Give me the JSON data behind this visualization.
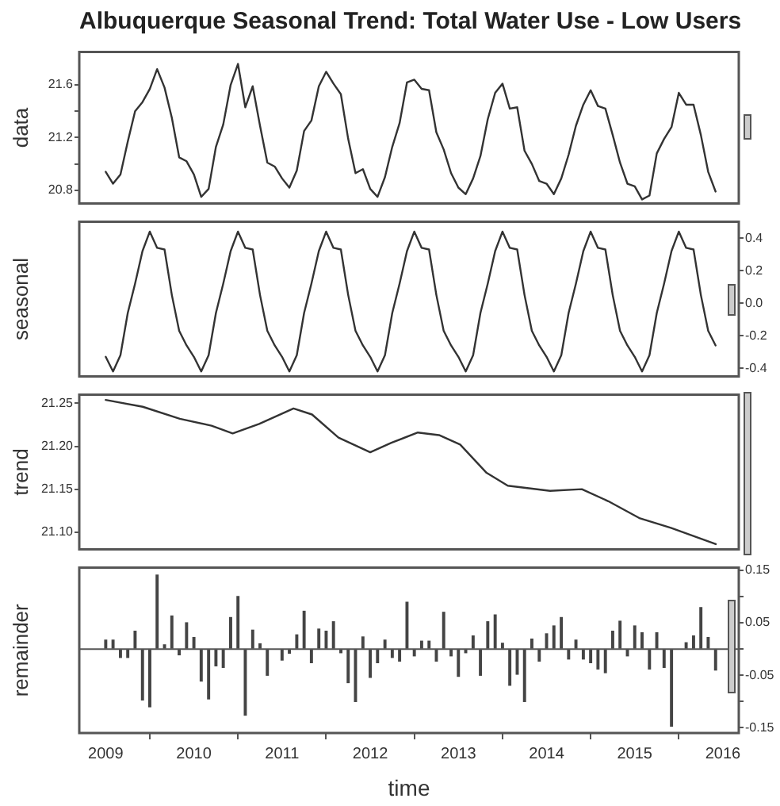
{
  "chart_data": [
    {
      "type": "line",
      "title": "Albuquerque Seasonal Trend: Total Water Use - Low Users",
      "ylabel": "data",
      "color": "#333333",
      "x": [
        2009,
        2009.083,
        2009.167,
        2009.25,
        2009.333,
        2009.417,
        2009.5,
        2009.583,
        2009.667,
        2009.75,
        2009.833,
        2009.917,
        2010,
        2010.083,
        2010.167,
        2010.25,
        2010.333,
        2010.417,
        2010.5,
        2010.583,
        2010.667,
        2010.75,
        2010.833,
        2010.917,
        2011,
        2011.083,
        2011.167,
        2011.25,
        2011.333,
        2011.417,
        2011.5,
        2011.583,
        2011.667,
        2011.75,
        2011.833,
        2011.917,
        2012,
        2012.083,
        2012.167,
        2012.25,
        2012.333,
        2012.417,
        2012.5,
        2012.583,
        2012.667,
        2012.75,
        2012.833,
        2012.917,
        2013,
        2013.083,
        2013.167,
        2013.25,
        2013.333,
        2013.417,
        2013.5,
        2013.583,
        2013.667,
        2013.75,
        2013.833,
        2013.917,
        2014,
        2014.083,
        2014.167,
        2014.25,
        2014.333,
        2014.417,
        2014.5,
        2014.583,
        2014.667,
        2014.75,
        2014.833,
        2014.917,
        2015,
        2015.083,
        2015.167,
        2015.25,
        2015.333,
        2015.417,
        2015.5,
        2015.583,
        2015.667,
        2015.75,
        2015.833,
        2015.917
      ],
      "values": [
        20.94,
        20.85,
        20.92,
        21.17,
        21.4,
        21.47,
        21.57,
        21.72,
        21.58,
        21.35,
        21.05,
        21.02,
        20.92,
        20.75,
        20.81,
        21.13,
        21.3,
        21.6,
        21.76,
        21.43,
        21.59,
        21.29,
        21.01,
        20.98,
        20.89,
        20.82,
        20.95,
        21.25,
        21.33,
        21.59,
        21.7,
        21.61,
        21.53,
        21.19,
        20.93,
        20.96,
        20.81,
        20.75,
        20.9,
        21.13,
        21.31,
        21.62,
        21.64,
        21.57,
        21.56,
        21.24,
        21.11,
        20.93,
        20.82,
        20.77,
        20.89,
        21.06,
        21.34,
        21.54,
        21.61,
        21.42,
        21.43,
        21.1,
        21.0,
        20.87,
        20.85,
        20.77,
        20.89,
        21.07,
        21.29,
        21.45,
        21.56,
        21.44,
        21.42,
        21.22,
        21.01,
        20.85,
        20.83,
        20.73,
        20.76,
        21.08,
        21.19,
        21.28,
        21.54,
        21.45,
        21.45,
        21.22,
        20.94,
        20.79
      ],
      "xlim": [
        2008.7,
        2016.18
      ],
      "xticks": [
        2009,
        2010,
        2011,
        2012,
        2013,
        2014,
        2015,
        2016
      ],
      "ylim": [
        20.7,
        21.85
      ],
      "yticks": [
        20.8,
        {
          "value": 21.0,
          "label": null
        },
        21.2,
        {
          "value": 21.4,
          "label": null
        },
        21.6
      ],
      "tick_labels": "y"
    },
    {
      "type": "line",
      "ylabel": "seasonal",
      "color": "#333333",
      "x": [
        2009,
        2009.083,
        2009.167,
        2009.25,
        2009.333,
        2009.417,
        2009.5,
        2009.583,
        2009.667,
        2009.75,
        2009.833,
        2009.917,
        2010,
        2010.083,
        2010.167,
        2010.25,
        2010.333,
        2010.417,
        2010.5,
        2010.583,
        2010.667,
        2010.75,
        2010.833,
        2010.917,
        2011,
        2011.083,
        2011.167,
        2011.25,
        2011.333,
        2011.417,
        2011.5,
        2011.583,
        2011.667,
        2011.75,
        2011.833,
        2011.917,
        2012,
        2012.083,
        2012.167,
        2012.25,
        2012.333,
        2012.417,
        2012.5,
        2012.583,
        2012.667,
        2012.75,
        2012.833,
        2012.917,
        2013,
        2013.083,
        2013.167,
        2013.25,
        2013.333,
        2013.417,
        2013.5,
        2013.583,
        2013.667,
        2013.75,
        2013.833,
        2013.917,
        2014,
        2014.083,
        2014.167,
        2014.25,
        2014.333,
        2014.417,
        2014.5,
        2014.583,
        2014.667,
        2014.75,
        2014.833,
        2014.917,
        2015,
        2015.083,
        2015.167,
        2015.25,
        2015.333,
        2015.417,
        2015.5,
        2015.583,
        2015.667,
        2015.75,
        2015.833,
        2015.917
      ],
      "values": [
        -0.33,
        -0.42,
        -0.32,
        -0.06,
        0.12,
        0.32,
        0.44,
        0.34,
        0.33,
        0.05,
        -0.17,
        -0.26,
        -0.33,
        -0.42,
        -0.32,
        -0.06,
        0.12,
        0.32,
        0.44,
        0.34,
        0.33,
        0.05,
        -0.17,
        -0.26,
        -0.33,
        -0.42,
        -0.32,
        -0.06,
        0.12,
        0.32,
        0.44,
        0.34,
        0.33,
        0.05,
        -0.17,
        -0.26,
        -0.33,
        -0.42,
        -0.32,
        -0.06,
        0.12,
        0.32,
        0.44,
        0.34,
        0.33,
        0.05,
        -0.17,
        -0.26,
        -0.33,
        -0.42,
        -0.32,
        -0.06,
        0.12,
        0.32,
        0.44,
        0.34,
        0.33,
        0.05,
        -0.17,
        -0.26,
        -0.33,
        -0.42,
        -0.32,
        -0.06,
        0.12,
        0.32,
        0.44,
        0.34,
        0.33,
        0.05,
        -0.17,
        -0.26,
        -0.33,
        -0.42,
        -0.32,
        -0.06,
        0.12,
        0.32,
        0.44,
        0.34,
        0.33,
        0.05,
        -0.17,
        -0.26
      ],
      "xlim": [
        2008.7,
        2016.18
      ],
      "xticks": [
        2009,
        2010,
        2011,
        2012,
        2013,
        2014,
        2015,
        2016
      ],
      "ylim": [
        -0.45,
        0.5
      ],
      "yticks": [
        -0.4,
        -0.2,
        {
          "value": 0,
          "label": "0.0"
        },
        0.2,
        0.4
      ],
      "tick_labels": "y"
    },
    {
      "type": "line",
      "ylabel": "trend",
      "color": "#333333",
      "x": [
        2009.0,
        2009.42,
        2009.84,
        2010.2,
        2010.44,
        2010.74,
        2011.13,
        2011.34,
        2011.64,
        2012.0,
        2012.24,
        2012.54,
        2012.78,
        2013.02,
        2013.32,
        2013.56,
        2014.04,
        2014.4,
        2014.7,
        2015.06,
        2015.41,
        2015.92
      ],
      "values": [
        21.254,
        21.246,
        21.232,
        21.224,
        21.215,
        21.226,
        21.244,
        21.237,
        21.21,
        21.193,
        21.204,
        21.216,
        21.213,
        21.202,
        21.169,
        21.154,
        21.148,
        21.15,
        21.136,
        21.116,
        21.105,
        21.086
      ],
      "xlim": [
        2008.7,
        2016.18
      ],
      "xticks": [
        2009,
        2010,
        2011,
        2012,
        2013,
        2014,
        2015,
        2016
      ],
      "ylim": [
        21.08,
        21.26
      ],
      "yticks": [
        {
          "value": 21.1,
          "label": "21.10"
        },
        21.15,
        {
          "value": 21.2,
          "label": "21.20"
        },
        21.25
      ],
      "tick_labels": "y"
    },
    {
      "type": "bar",
      "ylabel": "remainder",
      "xlabel": "time",
      "color": "#444444",
      "x": [
        2009,
        2009.083,
        2009.167,
        2009.25,
        2009.333,
        2009.417,
        2009.5,
        2009.583,
        2009.667,
        2009.75,
        2009.833,
        2009.917,
        2010,
        2010.083,
        2010.167,
        2010.25,
        2010.333,
        2010.417,
        2010.5,
        2010.583,
        2010.667,
        2010.75,
        2010.833,
        2010.917,
        2011,
        2011.083,
        2011.167,
        2011.25,
        2011.333,
        2011.417,
        2011.5,
        2011.583,
        2011.667,
        2011.75,
        2011.833,
        2011.917,
        2012,
        2012.083,
        2012.167,
        2012.25,
        2012.333,
        2012.417,
        2012.5,
        2012.583,
        2012.667,
        2012.75,
        2012.833,
        2012.917,
        2013,
        2013.083,
        2013.167,
        2013.25,
        2013.333,
        2013.417,
        2013.5,
        2013.583,
        2013.667,
        2013.75,
        2013.833,
        2013.917,
        2014,
        2014.083,
        2014.167,
        2014.25,
        2014.333,
        2014.417,
        2014.5,
        2014.583,
        2014.667,
        2014.75,
        2014.833,
        2014.917,
        2015,
        2015.083,
        2015.167,
        2015.25,
        2015.333,
        2015.417,
        2015.5,
        2015.583,
        2015.667,
        2015.75,
        2015.833,
        2015.917
      ],
      "values": [
        0.017,
        0.017,
        -0.016,
        -0.016,
        0.034,
        -0.097,
        -0.11,
        0.141,
        0.008,
        0.063,
        -0.011,
        0.05,
        0.022,
        -0.061,
        -0.095,
        -0.032,
        -0.035,
        0.06,
        0.1,
        -0.126,
        0.036,
        0.01,
        -0.05,
        null,
        -0.021,
        -0.008,
        0.027,
        0.072,
        -0.026,
        0.038,
        0.034,
        0.052,
        -0.007,
        -0.064,
        -0.1,
        0.023,
        -0.054,
        -0.026,
        0.017,
        -0.016,
        -0.023,
        0.089,
        -0.013,
        0.015,
        0.015,
        -0.023,
        0.07,
        -0.013,
        -0.052,
        -0.007,
        0.025,
        -0.05,
        0.052,
        0.065,
        0.011,
        -0.069,
        -0.048,
        -0.1,
        0.019,
        -0.023,
        0.029,
        0.044,
        0.06,
        -0.019,
        0.017,
        -0.019,
        -0.026,
        -0.038,
        -0.045,
        0.034,
        0.053,
        -0.013,
        0.044,
        0.031,
        -0.038,
        0.031,
        -0.035,
        -0.147,
        null,
        0.012,
        0.025,
        0.079,
        0.022,
        -0.04
      ],
      "xlim": [
        2008.7,
        2016.18
      ],
      "xticks": [
        2009,
        2010,
        2011,
        2012,
        2013,
        2014,
        2015,
        2016
      ],
      "ylim": [
        -0.16,
        0.155
      ],
      "yticks": [
        -0.15,
        {
          "value": -0.1,
          "label": null
        },
        -0.05,
        {
          "value": 0,
          "label": null
        },
        0.05,
        {
          "value": 0.1,
          "label": null
        },
        0.15
      ],
      "ref_lines": [
        {
          "axis": "y",
          "value": 0
        }
      ]
    }
  ]
}
